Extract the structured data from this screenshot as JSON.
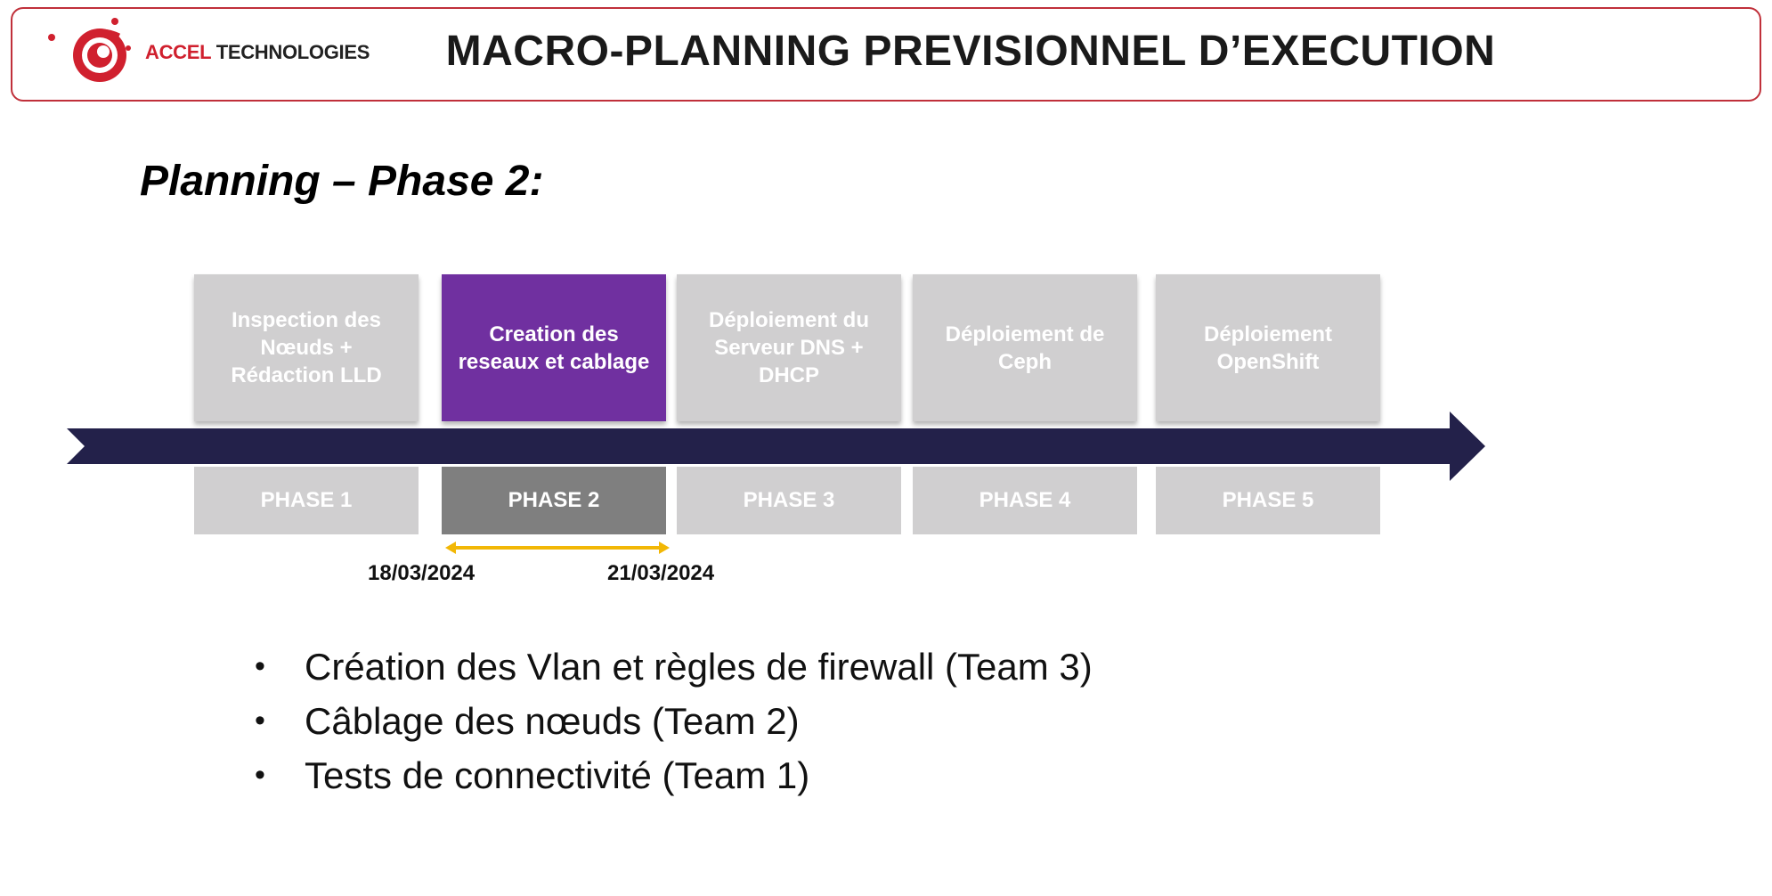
{
  "header": {
    "logo_accent": "ACCEL",
    "logo_rest": " TECHNOLOGIES",
    "title": "MACRO-PLANNING PREVISIONNEL D’EXECUTION"
  },
  "subtitle": "Planning – Phase 2:",
  "phases": [
    {
      "title": "Inspection des Nœuds + Rédaction LLD",
      "label": "PHASE 1",
      "active": false
    },
    {
      "title": "Creation des reseaux et cablage",
      "label": "PHASE 2",
      "active": true
    },
    {
      "title": "Déploiement du Serveur DNS + DHCP",
      "label": "PHASE 3",
      "active": false
    },
    {
      "title": "Déploiement de Ceph",
      "label": "PHASE 4",
      "active": false
    },
    {
      "title": "Déploiement OpenShift",
      "label": "PHASE 5",
      "active": false
    }
  ],
  "dates": {
    "start": "18/03/2024",
    "end": "21/03/2024"
  },
  "tasks": [
    "Création des Vlan et règles de firewall (Team 3)",
    "Câblage des nœuds (Team 2)",
    "Tests de connectivité  (Team 1)"
  ],
  "colors": {
    "active_card": "#7030a0",
    "inactive": "#d0cfd0",
    "active_label": "#7f7f7f",
    "timeline": "#23214a",
    "range_arrow": "#f2b705",
    "brand_red": "#d0202e"
  }
}
